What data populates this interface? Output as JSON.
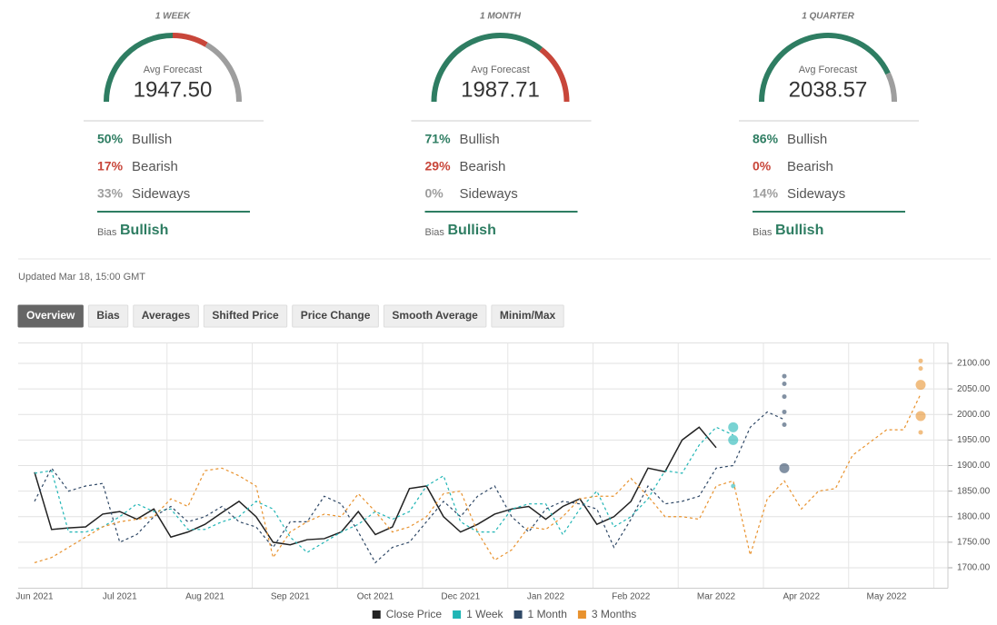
{
  "gauge_colors": [
    "#2e7d62",
    "#c8463a",
    "#9e9e9e"
  ],
  "gauges": [
    {
      "title": "1 WEEK",
      "avg_label": "Avg Forecast",
      "avg": "1947.50",
      "names": [
        "Bullish",
        "Bearish",
        "Sideways"
      ],
      "values": [
        50,
        17,
        33
      ],
      "value_labels": [
        "50%",
        "17%",
        "33%"
      ],
      "bias_label": "Bias",
      "bias": "Bullish"
    },
    {
      "title": "1 MONTH",
      "avg_label": "Avg Forecast",
      "avg": "1987.71",
      "names": [
        "Bullish",
        "Bearish",
        "Sideways"
      ],
      "values": [
        71,
        29,
        0
      ],
      "value_labels": [
        "71%",
        "29%",
        "0%"
      ],
      "bias_label": "Bias",
      "bias": "Bullish"
    },
    {
      "title": "1 QUARTER",
      "avg_label": "Avg Forecast",
      "avg": "2038.57",
      "names": [
        "Bullish",
        "Bearish",
        "Sideways"
      ],
      "values": [
        86,
        0,
        14
      ],
      "value_labels": [
        "86%",
        "0%",
        "14%"
      ],
      "bias_label": "Bias",
      "bias": "Bullish"
    }
  ],
  "updated": "Updated Mar 18, 15:00 GMT",
  "tabs": [
    "Overview",
    "Bias",
    "Averages",
    "Shifted Price",
    "Price Change",
    "Smooth Average",
    "Minim/Max"
  ],
  "active_tab": 0,
  "chart_data": {
    "type": "line",
    "categories": [
      "Jun 2021",
      null,
      null,
      null,
      null,
      "Jul 2021",
      null,
      null,
      null,
      null,
      "Aug 2021",
      null,
      null,
      null,
      null,
      "Sep 2021",
      null,
      null,
      null,
      null,
      "Oct 2021",
      null,
      null,
      null,
      null,
      "Dec 2021",
      null,
      null,
      null,
      null,
      "Jan 2022",
      null,
      null,
      null,
      null,
      "Feb 2022",
      null,
      null,
      null,
      null,
      "Mar 2022",
      null,
      null,
      null,
      null,
      "Apr 2022",
      null,
      null,
      null,
      null,
      "May 2022",
      null,
      null
    ],
    "ylim": [
      1660,
      2140
    ],
    "yticks": [
      {
        "value": 1700,
        "label": "1700.00"
      },
      {
        "value": 1750,
        "label": "1750.00"
      },
      {
        "value": 1800,
        "label": "1800.00"
      },
      {
        "value": 1850,
        "label": "1850.00"
      },
      {
        "value": 1900,
        "label": "1900.00"
      },
      {
        "value": 1950,
        "label": "1950.00"
      },
      {
        "value": 2000,
        "label": "2000.00"
      },
      {
        "value": 2050,
        "label": "2050.00"
      },
      {
        "value": 2100,
        "label": "2100.00"
      }
    ],
    "grid": true,
    "series": [
      {
        "name": "Close Price",
        "color": "#222222",
        "dashed": false,
        "values": [
          1887,
          1775,
          1778,
          1780,
          1805,
          1810,
          1795,
          1815,
          1760,
          1770,
          1785,
          1808,
          1830,
          1800,
          1750,
          1745,
          1755,
          1757,
          1770,
          1810,
          1765,
          1780,
          1855,
          1860,
          1800,
          1770,
          1785,
          1805,
          1815,
          1820,
          1795,
          1820,
          1835,
          1785,
          1800,
          1830,
          1895,
          1888,
          1950,
          1975,
          1935,
          null,
          null,
          null,
          null,
          null,
          null,
          null,
          null,
          null,
          null,
          null,
          null
        ],
        "points": []
      },
      {
        "name": "1 Week",
        "color": "#1fb5b5",
        "dashed": true,
        "values": [
          1885,
          1890,
          1770,
          1770,
          1780,
          1800,
          1825,
          1810,
          1815,
          1775,
          1775,
          1790,
          1800,
          1830,
          1815,
          1760,
          1730,
          1750,
          1770,
          1785,
          1810,
          1795,
          1810,
          1860,
          1880,
          1790,
          1770,
          1770,
          1815,
          1825,
          1825,
          1765,
          1815,
          1850,
          1780,
          1800,
          1835,
          1890,
          1885,
          1940,
          1975,
          1960,
          null,
          null,
          null,
          null,
          null,
          null,
          null,
          null,
          null,
          null,
          null
        ],
        "points": [
          {
            "x": 41,
            "value": 1975,
            "size": 2
          },
          {
            "x": 41,
            "value": 1950,
            "size": 2
          },
          {
            "x": 41,
            "value": 1860,
            "size": 1
          }
        ]
      },
      {
        "name": "1 Month",
        "color": "#2f4866",
        "dashed": true,
        "values": [
          1830,
          1895,
          1850,
          1860,
          1865,
          1750,
          1765,
          1800,
          1820,
          1790,
          1800,
          1820,
          1790,
          1780,
          1740,
          1790,
          1790,
          1840,
          1825,
          1770,
          1710,
          1740,
          1750,
          1790,
          1830,
          1800,
          1840,
          1860,
          1800,
          1770,
          1815,
          1830,
          1825,
          1815,
          1740,
          1795,
          1860,
          1825,
          1830,
          1840,
          1895,
          1900,
          1975,
          2005,
          1990,
          null,
          null,
          null,
          null,
          null,
          null,
          null,
          null
        ],
        "points": [
          {
            "x": 44,
            "value": 2075,
            "size": 1
          },
          {
            "x": 44,
            "value": 2060,
            "size": 1
          },
          {
            "x": 44,
            "value": 2035,
            "size": 1
          },
          {
            "x": 44,
            "value": 2005,
            "size": 1
          },
          {
            "x": 44,
            "value": 1980,
            "size": 1
          },
          {
            "x": 44,
            "value": 1895,
            "size": 2
          }
        ]
      },
      {
        "name": "3 Months",
        "color": "#e8922e",
        "dashed": true,
        "values": [
          1710,
          1720,
          1740,
          1760,
          1780,
          1790,
          1795,
          1800,
          1835,
          1820,
          1890,
          1895,
          1880,
          1860,
          1720,
          1770,
          1790,
          1805,
          1800,
          1845,
          1810,
          1770,
          1780,
          1800,
          1845,
          1850,
          1770,
          1715,
          1735,
          1780,
          1775,
          1800,
          1835,
          1840,
          1840,
          1875,
          1840,
          1800,
          1800,
          1795,
          1860,
          1870,
          1725,
          1835,
          1870,
          1815,
          1850,
          1855,
          1920,
          1945,
          1970,
          1970,
          2040
        ],
        "points": [
          {
            "x": 52,
            "value": 2105,
            "size": 1
          },
          {
            "x": 52,
            "value": 2090,
            "size": 1
          },
          {
            "x": 52,
            "value": 2058,
            "size": 2
          },
          {
            "x": 52,
            "value": 1997,
            "size": 2
          },
          {
            "x": 52,
            "value": 1965,
            "size": 1
          }
        ]
      }
    ]
  }
}
